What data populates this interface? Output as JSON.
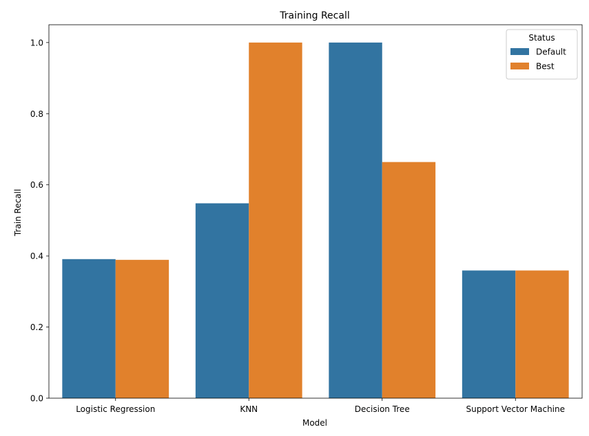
{
  "chart_data": {
    "type": "bar",
    "title": "Training Recall",
    "xlabel": "Model",
    "ylabel": "Train Recall",
    "categories": [
      "Logistic Regression",
      "KNN",
      "Decision Tree",
      "Support Vector Machine"
    ],
    "series": [
      {
        "name": "Default",
        "color": "#3274a1",
        "values": [
          0.391,
          0.548,
          1.0,
          0.359
        ]
      },
      {
        "name": "Best",
        "color": "#e1812c",
        "values": [
          0.389,
          1.0,
          0.664,
          0.359
        ]
      }
    ],
    "ylim": [
      0,
      1.05
    ],
    "yticks": [
      0.0,
      0.2,
      0.4,
      0.6,
      0.8,
      1.0
    ],
    "ytick_labels": [
      "0.0",
      "0.2",
      "0.4",
      "0.6",
      "0.8",
      "1.0"
    ],
    "legend": {
      "title": "Status",
      "placement": "top-right"
    },
    "grid": false
  }
}
